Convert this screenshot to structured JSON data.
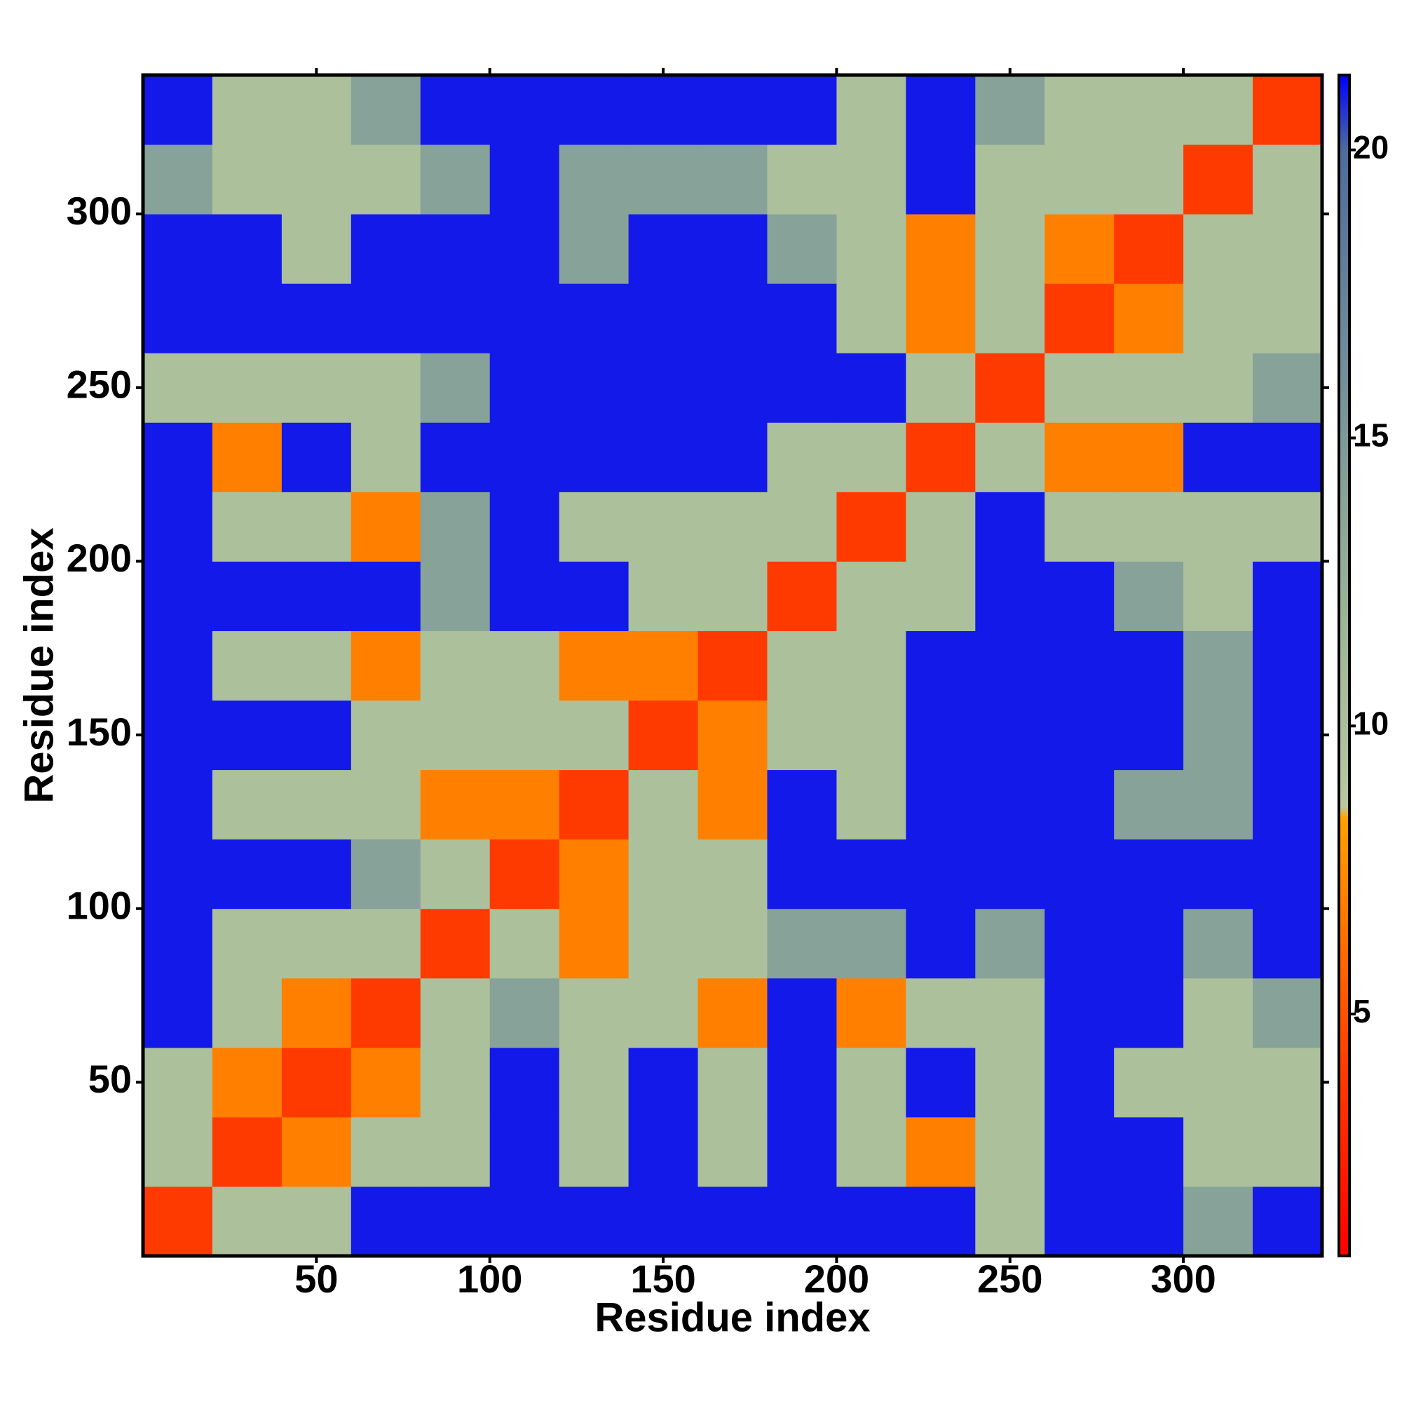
{
  "chart_data": {
    "type": "heatmap",
    "x_label": "Residue index",
    "y_label": "Residue index",
    "xbins": [
      0,
      20,
      40,
      60,
      80,
      100,
      120,
      140,
      160,
      180,
      200,
      220,
      240,
      260,
      280,
      300,
      320,
      340
    ],
    "ybins": [
      0,
      20,
      40,
      60,
      80,
      100,
      120,
      140,
      160,
      180,
      200,
      220,
      240,
      260,
      280,
      300,
      320,
      340
    ],
    "values": [
      [
        4,
        10,
        10,
        21,
        21,
        21,
        21,
        21,
        21,
        21,
        21,
        21,
        10,
        21,
        21,
        14,
        21
      ],
      [
        10,
        4,
        7,
        10,
        10,
        21,
        10,
        21,
        10,
        21,
        10,
        7,
        10,
        21,
        21,
        10,
        10
      ],
      [
        10,
        7,
        4,
        7,
        10,
        21,
        10,
        21,
        10,
        21,
        10,
        21,
        10,
        21,
        10,
        10,
        10
      ],
      [
        21,
        10,
        7,
        4,
        10,
        14,
        10,
        10,
        7,
        21,
        7,
        10,
        10,
        21,
        21,
        10,
        14
      ],
      [
        21,
        10,
        10,
        10,
        4,
        10,
        7,
        10,
        10,
        14,
        14,
        21,
        14,
        21,
        21,
        14,
        21
      ],
      [
        21,
        21,
        21,
        14,
        10,
        4,
        7,
        10,
        10,
        21,
        21,
        21,
        21,
        21,
        21,
        21,
        21
      ],
      [
        21,
        10,
        10,
        10,
        7,
        7,
        4,
        10,
        7,
        21,
        10,
        21,
        21,
        21,
        14,
        14,
        21
      ],
      [
        21,
        21,
        21,
        10,
        10,
        10,
        10,
        4,
        7,
        10,
        10,
        21,
        21,
        21,
        21,
        14,
        21
      ],
      [
        21,
        10,
        10,
        7,
        10,
        10,
        7,
        7,
        4,
        10,
        10,
        21,
        21,
        21,
        21,
        14,
        21
      ],
      [
        21,
        21,
        21,
        21,
        14,
        21,
        21,
        10,
        10,
        4,
        10,
        10,
        21,
        21,
        14,
        10,
        21
      ],
      [
        21,
        10,
        10,
        7,
        14,
        21,
        10,
        10,
        10,
        10,
        4,
        10,
        21,
        10,
        10,
        10,
        10
      ],
      [
        21,
        7,
        21,
        10,
        21,
        21,
        21,
        21,
        21,
        10,
        10,
        4,
        10,
        7,
        7,
        21,
        21
      ],
      [
        10,
        10,
        10,
        10,
        14,
        21,
        21,
        21,
        21,
        21,
        21,
        10,
        4,
        10,
        10,
        10,
        14
      ],
      [
        21,
        21,
        21,
        21,
        21,
        21,
        21,
        21,
        21,
        21,
        10,
        7,
        10,
        4,
        7,
        10,
        10
      ],
      [
        21,
        21,
        10,
        21,
        21,
        21,
        14,
        21,
        21,
        14,
        10,
        7,
        10,
        7,
        4,
        10,
        10
      ],
      [
        14,
        10,
        10,
        10,
        14,
        21,
        14,
        14,
        14,
        10,
        10,
        21,
        10,
        10,
        10,
        4,
        10
      ],
      [
        21,
        10,
        10,
        14,
        21,
        21,
        21,
        21,
        21,
        21,
        10,
        21,
        14,
        10,
        10,
        10,
        4
      ]
    ],
    "xlim": [
      0,
      340
    ],
    "ylim": [
      0,
      340
    ],
    "xticks": [
      50,
      100,
      150,
      200,
      250,
      300
    ],
    "yticks": [
      50,
      100,
      150,
      200,
      250,
      300
    ],
    "clim": [
      0.8,
      21.3
    ],
    "cticks": [
      5,
      10,
      15,
      20
    ],
    "colorscale": [
      [
        0.8,
        "#ff0000"
      ],
      [
        4,
        "#ff3a00"
      ],
      [
        8.4,
        "#ffa000"
      ],
      [
        8.6,
        "#b8c8a0"
      ],
      [
        12,
        "#9ab496"
      ],
      [
        20,
        "#4d6c9c"
      ],
      [
        21.3,
        "#0000ff"
      ]
    ]
  }
}
